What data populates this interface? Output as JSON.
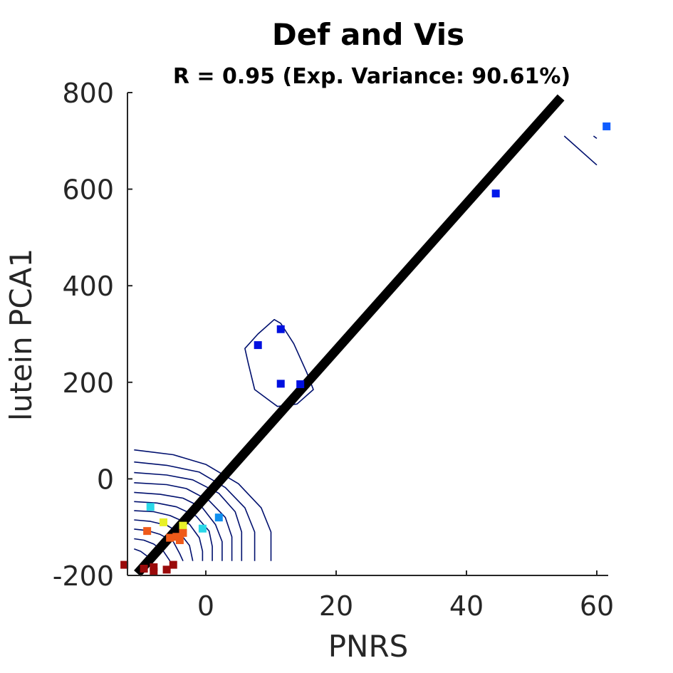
{
  "chart_data": {
    "type": "scatter",
    "title": "Def and Vis",
    "subtitle": "R = 0.95 (Exp. Variance: 90.61%)",
    "xlabel": "PNRS",
    "ylabel": "lutein PCA1",
    "xlim": [
      -12.5,
      61.5
    ],
    "ylim": [
      -200,
      800
    ],
    "xticks": [
      0,
      20,
      40,
      60
    ],
    "yticks": [
      -200,
      0,
      200,
      400,
      600,
      800
    ],
    "x_tick_labels": [
      "0",
      "20",
      "40",
      "60"
    ],
    "y_tick_labels": [
      "-200",
      "0",
      "200",
      "400",
      "600",
      "800"
    ],
    "grid": false,
    "legend": "none",
    "fit_line": {
      "x": [
        -10.5,
        54.5
      ],
      "y": [
        -196,
        790
      ],
      "color": "#000000"
    },
    "points": [
      {
        "x": 61.5,
        "y": 730,
        "color": "#0f5cff"
      },
      {
        "x": 44.5,
        "y": 591,
        "color": "#0018ea"
      },
      {
        "x": 11.5,
        "y": 310,
        "color": "#0010e0"
      },
      {
        "x": 8,
        "y": 277,
        "color": "#0010e0"
      },
      {
        "x": 11.5,
        "y": 197,
        "color": "#0010e0"
      },
      {
        "x": 14.5,
        "y": 196,
        "color": "#0010e0"
      },
      {
        "x": -8.5,
        "y": -58,
        "color": "#2ad8e8"
      },
      {
        "x": 2,
        "y": -80,
        "color": "#1090f0"
      },
      {
        "x": -0.5,
        "y": -103,
        "color": "#2ad8e8"
      },
      {
        "x": -6.5,
        "y": -90,
        "color": "#e8f028"
      },
      {
        "x": -3.5,
        "y": -97,
        "color": "#e8f028"
      },
      {
        "x": -9,
        "y": -108,
        "color": "#ef5a1a"
      },
      {
        "x": -3.5,
        "y": -112,
        "color": "#ef5a1a"
      },
      {
        "x": -4.5,
        "y": -120,
        "color": "#ef5a1a"
      },
      {
        "x": -4,
        "y": -127,
        "color": "#ef5a1a"
      },
      {
        "x": -5.5,
        "y": -122,
        "color": "#ef5a1a"
      },
      {
        "x": -12.5,
        "y": -178,
        "color": "#9a0a0a"
      },
      {
        "x": -8,
        "y": -183,
        "color": "#9a0a0a"
      },
      {
        "x": -5,
        "y": -178,
        "color": "#9a0a0a"
      },
      {
        "x": -6,
        "y": -188,
        "color": "#9a0a0a"
      },
      {
        "x": -8,
        "y": -192,
        "color": "#9a0a0a"
      },
      {
        "x": -9.5,
        "y": -186,
        "color": "#9a0a0a"
      }
    ],
    "contours": [
      {
        "points": [
          [
            8,
            300
          ],
          [
            10.5,
            330
          ],
          [
            11.5,
            322
          ],
          [
            13.5,
            280
          ],
          [
            15.5,
            220
          ],
          [
            16.5,
            185
          ],
          [
            14,
            155
          ],
          [
            11,
            150
          ],
          [
            7.5,
            185
          ],
          [
            6.5,
            240
          ],
          [
            6,
            270
          ]
        ]
      },
      {
        "points": [
          [
            55,
            710
          ],
          [
            60,
            650
          ]
        ],
        "open": true
      },
      {
        "points": [
          [
            59.5,
            710
          ],
          [
            60,
            705
          ]
        ],
        "open": true
      },
      {
        "points": [
          [
            -11,
            60
          ],
          [
            -5,
            50
          ],
          [
            0,
            30
          ],
          [
            5,
            -10
          ],
          [
            8.5,
            -60
          ],
          [
            10,
            -110
          ],
          [
            10,
            -170
          ]
        ],
        "open": true
      },
      {
        "points": [
          [
            -11,
            35
          ],
          [
            -6,
            28
          ],
          [
            -1,
            14
          ],
          [
            3,
            -18
          ],
          [
            6,
            -60
          ],
          [
            7.5,
            -110
          ],
          [
            7.5,
            -170
          ]
        ],
        "open": true
      },
      {
        "points": [
          [
            -11,
            13
          ],
          [
            -6,
            8
          ],
          [
            -2,
            -2
          ],
          [
            2,
            -30
          ],
          [
            4.5,
            -68
          ],
          [
            5.5,
            -110
          ],
          [
            5.5,
            -170
          ]
        ],
        "open": true
      },
      {
        "points": [
          [
            -11,
            -8
          ],
          [
            -6,
            -12
          ],
          [
            -3,
            -20
          ],
          [
            0.5,
            -45
          ],
          [
            3,
            -80
          ],
          [
            4,
            -120
          ],
          [
            4,
            -170
          ]
        ],
        "open": true
      },
      {
        "points": [
          [
            -11,
            -28
          ],
          [
            -7,
            -32
          ],
          [
            -3.5,
            -40
          ],
          [
            -0.5,
            -60
          ],
          [
            1.5,
            -95
          ],
          [
            2.5,
            -130
          ],
          [
            2.5,
            -170
          ]
        ],
        "open": true
      },
      {
        "points": [
          [
            -11,
            -47
          ],
          [
            -7.5,
            -50
          ],
          [
            -4.5,
            -58
          ],
          [
            -1.5,
            -77
          ],
          [
            0.5,
            -108
          ],
          [
            1,
            -140
          ],
          [
            1,
            -170
          ]
        ],
        "open": true
      },
      {
        "points": [
          [
            -11,
            -66
          ],
          [
            -8,
            -68
          ],
          [
            -5.5,
            -76
          ],
          [
            -2.5,
            -94
          ],
          [
            -1,
            -122
          ],
          [
            -0.5,
            -150
          ],
          [
            -0.5,
            -170
          ]
        ],
        "open": true
      },
      {
        "points": [
          [
            -11,
            -85
          ],
          [
            -8.5,
            -88
          ],
          [
            -6,
            -96
          ],
          [
            -4,
            -112
          ],
          [
            -2.5,
            -138
          ],
          [
            -2,
            -170
          ]
        ],
        "open": true
      },
      {
        "points": [
          [
            -11,
            -104
          ],
          [
            -9,
            -107
          ],
          [
            -7,
            -115
          ],
          [
            -5,
            -130
          ],
          [
            -4,
            -155
          ],
          [
            -3.5,
            -170
          ]
        ],
        "open": true
      },
      {
        "points": [
          [
            -11,
            -124
          ],
          [
            -9.5,
            -127
          ],
          [
            -8,
            -135
          ],
          [
            -6.5,
            -150
          ],
          [
            -5.5,
            -170
          ]
        ],
        "open": true
      },
      {
        "points": [
          [
            -11,
            -145
          ],
          [
            -10,
            -150
          ],
          [
            -9,
            -160
          ],
          [
            -8.5,
            -172
          ]
        ],
        "open": true
      }
    ],
    "contour_color": "#00106e"
  }
}
